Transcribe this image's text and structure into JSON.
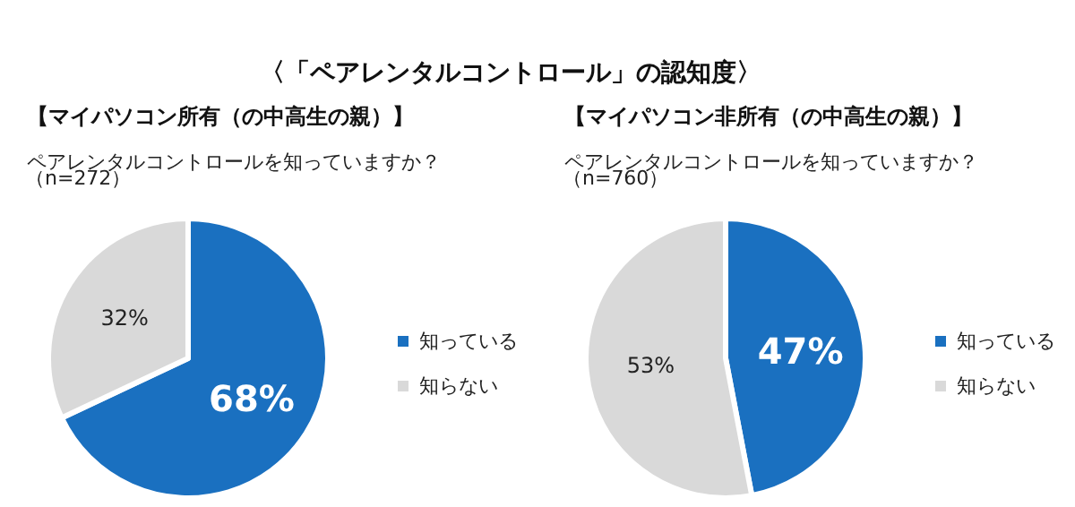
{
  "chart_data": [
    {
      "type": "pie",
      "title": "【マイパソコン所有（の中高生の親）】",
      "subtitle": "ペアレンタルコントロールを知っていますか？",
      "annotations": [
        "〈「ペアレンタルコントロール」の認知度〉",
        "（n=272）"
      ],
      "categories": [
        "知っている",
        "知らない"
      ],
      "values": [
        68,
        32
      ],
      "value_labels": [
        "68%",
        "32%"
      ],
      "colors": [
        "#1a70c0",
        "#d9d9d9"
      ],
      "legend": "right"
    },
    {
      "type": "pie",
      "title": "【マイパソコン非所有（の中高生の親）】",
      "subtitle": "ペアレンタルコントロールを知っていますか？",
      "annotations": [
        "（n=760）"
      ],
      "categories": [
        "知っている",
        "知らない"
      ],
      "values": [
        47,
        53
      ],
      "value_labels": [
        "47%",
        "53%"
      ],
      "colors": [
        "#1a70c0",
        "#d9d9d9"
      ],
      "legend": "right"
    }
  ]
}
